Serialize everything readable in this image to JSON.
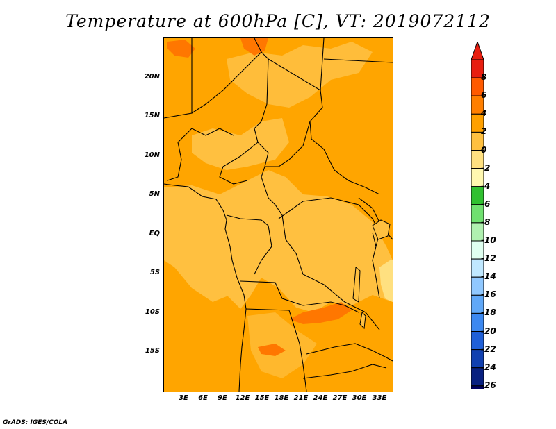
{
  "title": "Temperature at 600hPa [C], VT: 2019072112",
  "footer": "GrADS: IGES/COLA",
  "map": {
    "variable": "temperature",
    "level": "600hPa",
    "units": "C",
    "valid_time": "2019072112",
    "lat_labels": [
      "20N",
      "15N",
      "10N",
      "5N",
      "EQ",
      "5S",
      "10S",
      "15S"
    ],
    "lon_labels": [
      "3E",
      "6E",
      "9E",
      "12E",
      "15E",
      "18E",
      "21E",
      "24E",
      "27E",
      "30E",
      "33E"
    ],
    "dominant_colors": {
      "warm_2_4": "#ffa500",
      "mid_0_2": "#ffc040",
      "hot_4_6": "#ff7700"
    }
  },
  "colorbar": {
    "labels": [
      "8",
      "6",
      "4",
      "2",
      "0",
      "-2",
      "-4",
      "-6",
      "-8",
      "-10",
      "-12",
      "-14",
      "-16",
      "-18",
      "-20",
      "-22",
      "-24",
      "-26"
    ],
    "colors": [
      "#e81e10",
      "#ff5a00",
      "#ff7f00",
      "#ffa000",
      "#ffc040",
      "#ffe080",
      "#fff8b0",
      "#30c030",
      "#70e070",
      "#b0f0b0",
      "#e0fff0",
      "#c0e8ff",
      "#90c8ff",
      "#60a8f8",
      "#3c88f0",
      "#2060d8",
      "#1040b0",
      "#082080",
      "#000060"
    ],
    "top_cap_color": "#e81e10",
    "bottom_cap_color": "#e0e0ff"
  }
}
